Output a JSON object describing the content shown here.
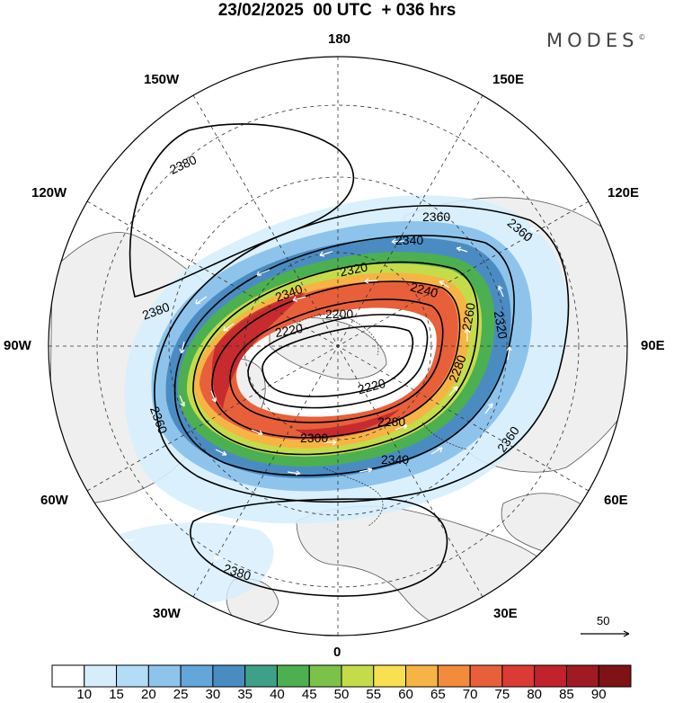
{
  "title": "23/02/2025  00 UTC  + 036 hrs",
  "brand": {
    "name": "MODES",
    "mark": "©"
  },
  "longitude_labels": {
    "top": "180",
    "top_left": "150W",
    "top_right": "150E",
    "upper_left": "120W",
    "upper_right": "120E",
    "left": "90W",
    "right": "90E",
    "lower_left": "60W",
    "lower_right": "60E",
    "bottom_left": "30W",
    "bottom_right": "30E",
    "bottom": "0"
  },
  "contour_labels": [
    "2380",
    "2380",
    "2380",
    "2360",
    "2360",
    "2360",
    "2360",
    "2340",
    "2340",
    "2340",
    "2320",
    "2320",
    "2300",
    "2280",
    "2280",
    "2260",
    "2240",
    "2220",
    "2220",
    "2200"
  ],
  "vector_reference": {
    "value": "50"
  },
  "colorbar": {
    "ticks": [
      "10",
      "15",
      "20",
      "25",
      "30",
      "35",
      "40",
      "45",
      "50",
      "55",
      "60",
      "65",
      "70",
      "75",
      "80",
      "85",
      "90"
    ],
    "colors": [
      "#ffffff",
      "#d6eefc",
      "#b3dcf7",
      "#8ec4ec",
      "#64a6da",
      "#4a8cc2",
      "#3fa08a",
      "#4cb050",
      "#7cc24a",
      "#c4dc4a",
      "#f8e050",
      "#f6b444",
      "#f28b3c",
      "#e8603a",
      "#dc3a34",
      "#c2222c",
      "#a01a22",
      "#7e1216"
    ]
  }
}
